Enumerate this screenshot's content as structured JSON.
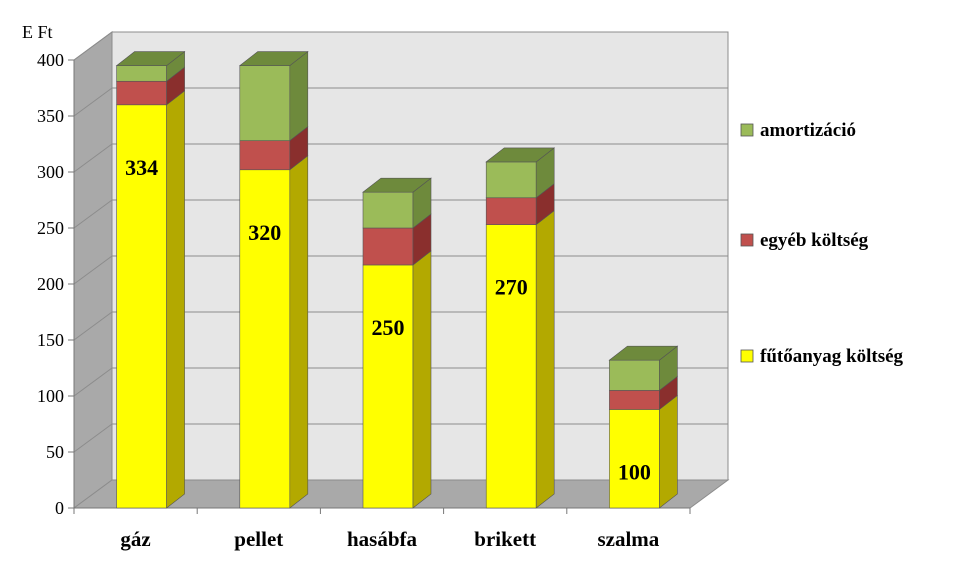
{
  "chart_data": {
    "type": "bar",
    "stacked": true,
    "three_d": true,
    "unit_label": "E Ft",
    "categories": [
      "gáz",
      "pellet",
      "hasábfa",
      "brikett",
      "szalma"
    ],
    "series": [
      {
        "name": "fűtőanyag költség",
        "values": [
          360,
          302,
          217,
          253,
          88
        ],
        "color": "#ffff00",
        "side_color": "#b3a900"
      },
      {
        "name": "egyéb költség",
        "values": [
          21,
          26,
          33,
          24,
          17
        ],
        "color": "#c0504d",
        "side_color": "#8a2f2d"
      },
      {
        "name": "amortizáció",
        "values": [
          14,
          67,
          32,
          32,
          27
        ],
        "color": "#9bbb59",
        "side_color": "#6e8a3c"
      }
    ],
    "data_labels": [
      "334",
      "320",
      "250",
      "270",
      "100"
    ],
    "ylim": [
      0,
      400
    ],
    "yticks": [
      0,
      50,
      100,
      150,
      200,
      250,
      300,
      350,
      400
    ],
    "grid": true,
    "legend_position": "right",
    "legend_order": [
      "amortizáció",
      "egyéb költség",
      "fűtőanyag költség"
    ]
  }
}
